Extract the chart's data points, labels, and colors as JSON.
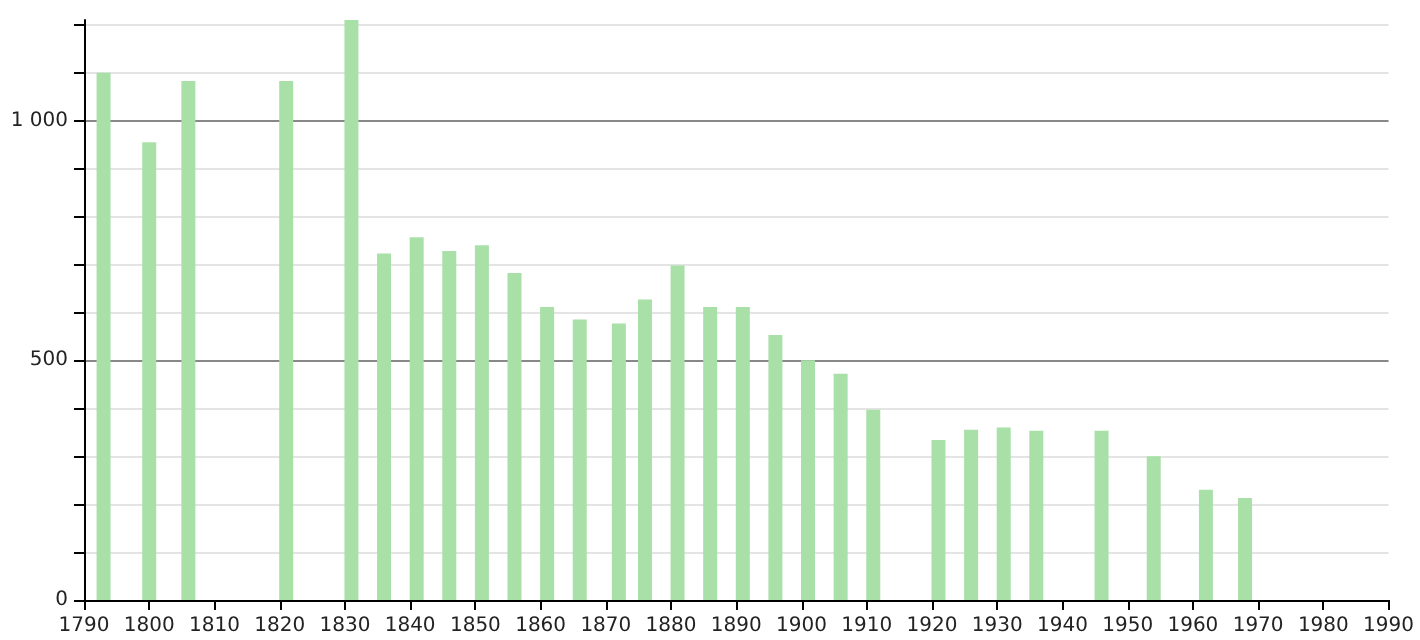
{
  "chart_data": {
    "type": "bar",
    "x": [
      1793,
      1800,
      1806,
      1821,
      1831,
      1836,
      1841,
      1846,
      1851,
      1856,
      1861,
      1866,
      1872,
      1876,
      1881,
      1886,
      1891,
      1896,
      1901,
      1906,
      1911,
      1921,
      1926,
      1931,
      1936,
      1946,
      1954,
      1962,
      1968
    ],
    "values": [
      1100,
      955,
      1083,
      1083,
      1210,
      723,
      757,
      728,
      740,
      682,
      611,
      585,
      577,
      627,
      698,
      611,
      611,
      553,
      500,
      472,
      397,
      334,
      355,
      360,
      353,
      353,
      300,
      230,
      213
    ],
    "color": "#a8e0a8",
    "xlim": [
      1790,
      1990
    ],
    "xticks": [
      1790,
      1800,
      1810,
      1820,
      1830,
      1840,
      1850,
      1860,
      1870,
      1880,
      1890,
      1900,
      1910,
      1920,
      1930,
      1940,
      1950,
      1960,
      1970,
      1980,
      1990
    ],
    "ylim": [
      0,
      1210
    ],
    "yticks": [
      0,
      {
        "value": 100,
        "label": null
      },
      {
        "value": 200,
        "label": null
      },
      {
        "value": 300,
        "label": null
      },
      {
        "value": 400,
        "label": null
      },
      500,
      {
        "value": 600,
        "label": null
      },
      {
        "value": 700,
        "label": null
      },
      {
        "value": 800,
        "label": null
      },
      {
        "value": 900,
        "label": null
      },
      {
        "value": 1000,
        "label": "1 000"
      },
      {
        "value": 1100,
        "label": null
      },
      {
        "value": 1200,
        "label": null
      }
    ],
    "grid": "y"
  }
}
